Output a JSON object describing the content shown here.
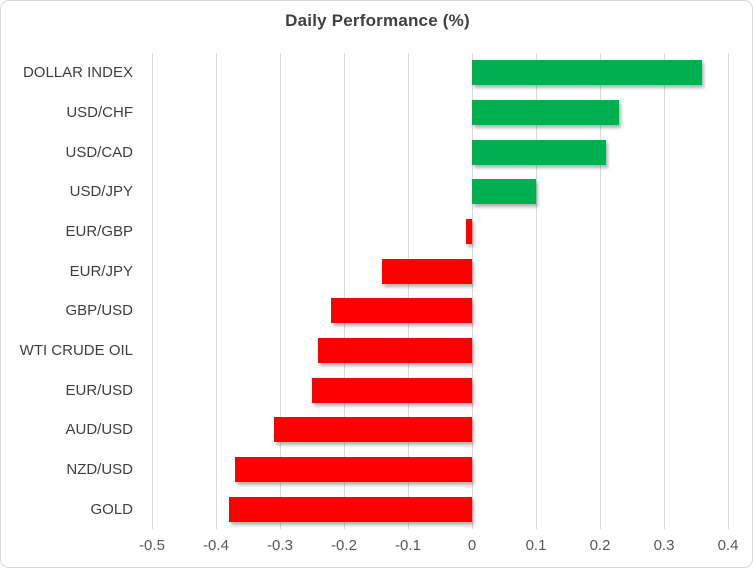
{
  "window": {
    "kind": "embedded-excel-chart"
  },
  "colors": {
    "positive": "#00B050",
    "negative": "#FF0000",
    "gridline": "#D9D9D9",
    "title": "#404040",
    "category_labels": "#404040",
    "axis_labels": "#595959",
    "border": "#D9D9D9",
    "background": "#FFFFFF"
  },
  "chart_data": {
    "type": "bar",
    "orientation": "horizontal",
    "title": "Daily Performance (%)",
    "xlabel": "",
    "ylabel": "",
    "categories": [
      "DOLLAR INDEX",
      "USD/CHF",
      "USD/CAD",
      "USD/JPY",
      "EUR/GBP",
      "EUR/JPY",
      "GBP/USD",
      "WTI CRUDE OIL",
      "EUR/USD",
      "AUD/USD",
      "NZD/USD",
      "GOLD"
    ],
    "values": [
      0.36,
      0.23,
      0.21,
      0.1,
      -0.01,
      -0.14,
      -0.22,
      -0.24,
      -0.25,
      -0.31,
      -0.37,
      -0.38
    ],
    "xlim": [
      -0.5,
      0.4
    ],
    "xticks": [
      -0.5,
      -0.4,
      -0.3,
      -0.2,
      -0.1,
      0,
      0.1,
      0.2,
      0.3,
      0.4
    ],
    "xtick_labels": [
      "-0.5",
      "-0.4",
      "-0.3",
      "-0.2",
      "-0.1",
      "0",
      "0.1",
      "0.2",
      "0.3",
      "0.4"
    ],
    "grid": true,
    "gridlines": "vertical",
    "legend_position": "none",
    "bar_color_positive": "#00B050",
    "bar_color_negative": "#FF0000"
  }
}
